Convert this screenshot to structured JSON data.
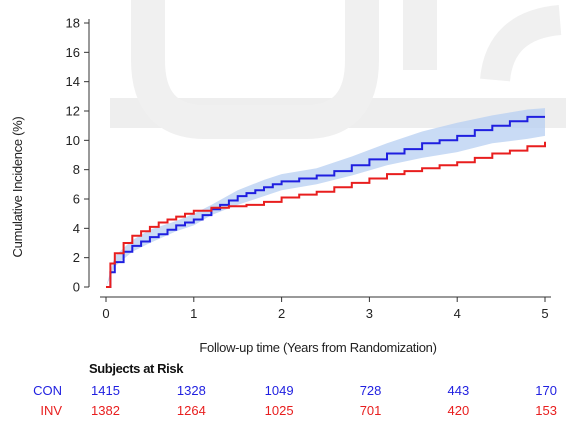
{
  "chart_data": {
    "type": "line",
    "xlabel": "Follow-up time (Years from Randomization)",
    "ylabel": "Cumulative Incidence (%)",
    "xlim": [
      0,
      5
    ],
    "ylim": [
      0,
      18
    ],
    "x_ticks": [
      0,
      1,
      2,
      3,
      4,
      5
    ],
    "y_ticks": [
      0,
      2,
      4,
      6,
      8,
      10,
      12,
      14,
      16,
      18
    ],
    "grid": false,
    "series": [
      {
        "name": "CON",
        "color": "#1f1fe0",
        "points": [
          [
            0,
            0
          ],
          [
            0.05,
            1.0
          ],
          [
            0.1,
            1.7
          ],
          [
            0.2,
            2.4
          ],
          [
            0.3,
            2.8
          ],
          [
            0.4,
            3.1
          ],
          [
            0.5,
            3.4
          ],
          [
            0.6,
            3.6
          ],
          [
            0.7,
            3.9
          ],
          [
            0.8,
            4.2
          ],
          [
            0.9,
            4.4
          ],
          [
            1.0,
            4.6
          ],
          [
            1.1,
            4.9
          ],
          [
            1.2,
            5.3
          ],
          [
            1.3,
            5.6
          ],
          [
            1.4,
            5.9
          ],
          [
            1.5,
            6.2
          ],
          [
            1.6,
            6.4
          ],
          [
            1.7,
            6.6
          ],
          [
            1.8,
            6.8
          ],
          [
            1.9,
            7.0
          ],
          [
            2.0,
            7.2
          ],
          [
            2.2,
            7.4
          ],
          [
            2.4,
            7.6
          ],
          [
            2.6,
            7.9
          ],
          [
            2.8,
            8.3
          ],
          [
            3.0,
            8.7
          ],
          [
            3.2,
            9.1
          ],
          [
            3.4,
            9.4
          ],
          [
            3.6,
            9.8
          ],
          [
            3.8,
            10.0
          ],
          [
            4.0,
            10.3
          ],
          [
            4.2,
            10.7
          ],
          [
            4.4,
            11.0
          ],
          [
            4.6,
            11.3
          ],
          [
            4.8,
            11.6
          ],
          [
            5.0,
            11.6
          ]
        ]
      },
      {
        "name": "INV",
        "color": "#e81e1e",
        "points": [
          [
            0,
            0
          ],
          [
            0.05,
            1.6
          ],
          [
            0.1,
            2.3
          ],
          [
            0.2,
            3.0
          ],
          [
            0.3,
            3.5
          ],
          [
            0.4,
            3.8
          ],
          [
            0.5,
            4.1
          ],
          [
            0.6,
            4.4
          ],
          [
            0.7,
            4.6
          ],
          [
            0.8,
            4.8
          ],
          [
            0.9,
            5.0
          ],
          [
            1.0,
            5.2
          ],
          [
            1.2,
            5.4
          ],
          [
            1.4,
            5.5
          ],
          [
            1.6,
            5.6
          ],
          [
            1.8,
            5.8
          ],
          [
            2.0,
            6.1
          ],
          [
            2.2,
            6.3
          ],
          [
            2.4,
            6.5
          ],
          [
            2.6,
            6.8
          ],
          [
            2.8,
            7.1
          ],
          [
            3.0,
            7.4
          ],
          [
            3.2,
            7.7
          ],
          [
            3.4,
            7.9
          ],
          [
            3.6,
            8.1
          ],
          [
            3.8,
            8.3
          ],
          [
            4.0,
            8.5
          ],
          [
            4.2,
            8.8
          ],
          [
            4.4,
            9.1
          ],
          [
            4.6,
            9.3
          ],
          [
            4.8,
            9.6
          ],
          [
            5.0,
            9.9
          ]
        ]
      }
    ],
    "band": {
      "color": "#b7cff2",
      "lower": [
        [
          0,
          0
        ],
        [
          0.1,
          1.4
        ],
        [
          0.3,
          2.4
        ],
        [
          0.5,
          3.0
        ],
        [
          0.8,
          3.8
        ],
        [
          1.0,
          4.2
        ],
        [
          1.2,
          4.9
        ],
        [
          1.5,
          5.6
        ],
        [
          1.8,
          6.2
        ],
        [
          2.0,
          6.6
        ],
        [
          2.4,
          7.0
        ],
        [
          2.8,
          7.6
        ],
        [
          3.2,
          8.3
        ],
        [
          3.6,
          8.8
        ],
        [
          4.0,
          9.2
        ],
        [
          4.4,
          9.8
        ],
        [
          4.8,
          10.1
        ],
        [
          5.0,
          10.3
        ]
      ],
      "upper": [
        [
          0,
          0
        ],
        [
          0.1,
          2.1
        ],
        [
          0.3,
          3.2
        ],
        [
          0.5,
          3.9
        ],
        [
          0.8,
          4.5
        ],
        [
          1.0,
          5.0
        ],
        [
          1.2,
          5.6
        ],
        [
          1.5,
          6.6
        ],
        [
          1.8,
          7.3
        ],
        [
          2.0,
          7.7
        ],
        [
          2.4,
          8.1
        ],
        [
          2.8,
          8.9
        ],
        [
          3.2,
          9.8
        ],
        [
          3.6,
          10.6
        ],
        [
          4.0,
          11.2
        ],
        [
          4.4,
          11.7
        ],
        [
          4.8,
          12.1
        ],
        [
          5.0,
          12.2
        ]
      ]
    },
    "risk_table": {
      "title": "Subjects at Risk",
      "rows": [
        {
          "label": "CON",
          "color": "#1f1fe0",
          "values": [
            "1415",
            "1328",
            "1049",
            "728",
            "443",
            "170"
          ]
        },
        {
          "label": "INV",
          "color": "#e81e1e",
          "values": [
            "1382",
            "1264",
            "1025",
            "701",
            "420",
            "153"
          ]
        }
      ]
    }
  }
}
